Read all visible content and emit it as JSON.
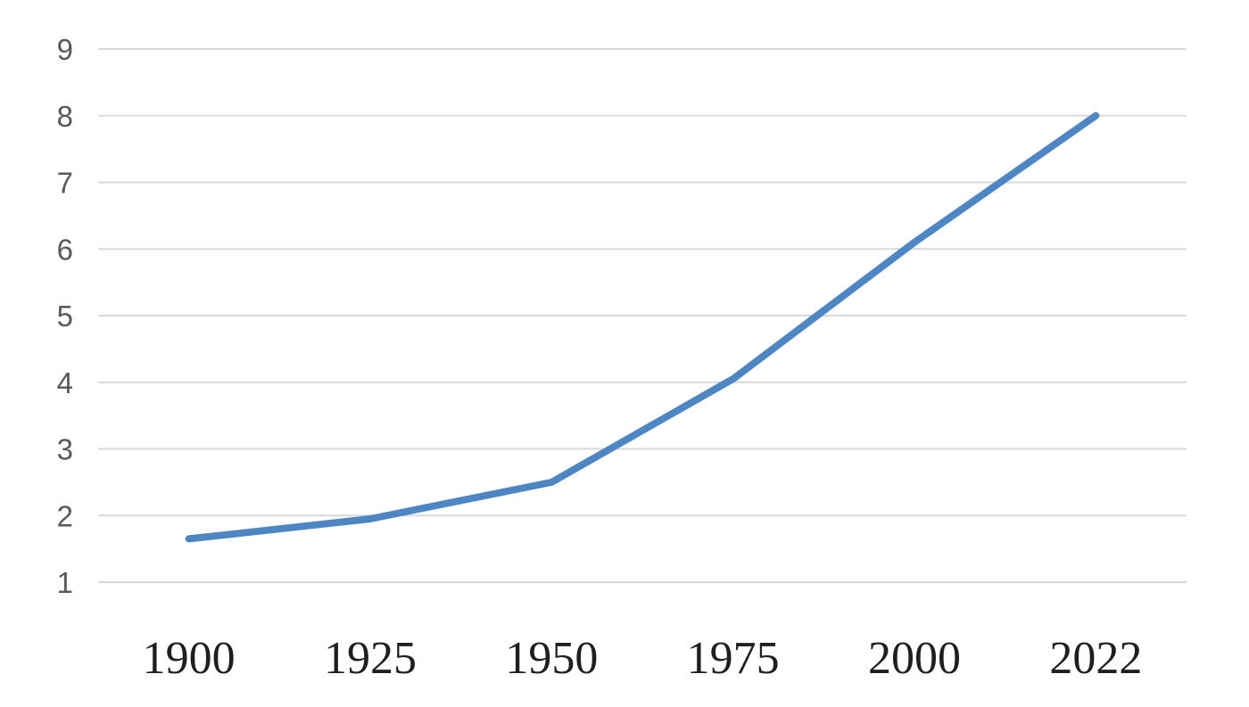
{
  "chart_data": {
    "type": "line",
    "title": "",
    "xlabel": "",
    "ylabel": "",
    "categories": [
      "1900",
      "1925",
      "1950",
      "1975",
      "2000",
      "2022"
    ],
    "values": [
      1.65,
      1.95,
      2.5,
      4.05,
      6.1,
      8.0
    ],
    "yticks": [
      9,
      8,
      7,
      6,
      5,
      4,
      3,
      2,
      1
    ],
    "ylim": [
      1,
      9
    ],
    "grid": "horizontal",
    "legend": "none",
    "colors": {
      "line": "#4e86c4",
      "gridline": "#d9d9d9",
      "y_tick_label": "#595959",
      "x_tick_label": "#1f1f1f",
      "background": "#ffffff"
    }
  }
}
